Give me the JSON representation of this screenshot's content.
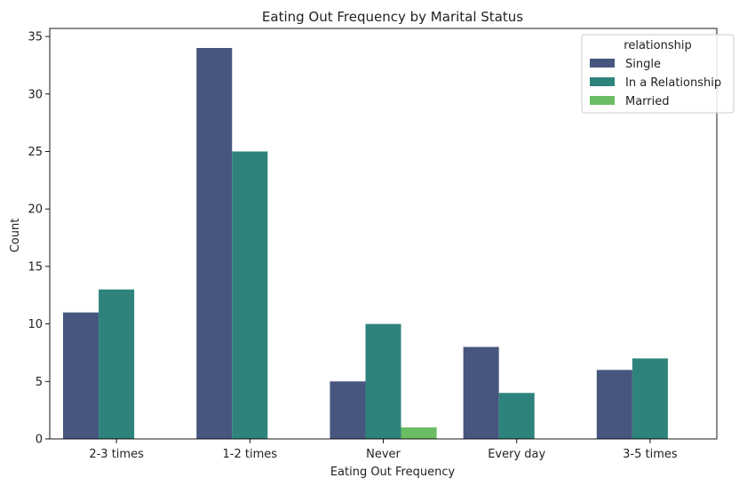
{
  "chart_data": {
    "type": "bar",
    "title": "Eating Out Frequency by Marital Status",
    "xlabel": "Eating Out Frequency",
    "ylabel": "Count",
    "ylim": [
      0,
      35.7
    ],
    "yticks": [
      0,
      5,
      10,
      15,
      20,
      25,
      30,
      35
    ],
    "categories": [
      "2-3 times",
      "1-2 times",
      "Never",
      "Every day",
      "3-5 times"
    ],
    "legend": {
      "title": "relationship",
      "placement": "top-right"
    },
    "series": [
      {
        "name": "Single",
        "color": "#46567f",
        "values": [
          11,
          34,
          5,
          8,
          6
        ]
      },
      {
        "name": "In a Relationship",
        "color": "#2e847c",
        "values": [
          13,
          25,
          10,
          4,
          7
        ]
      },
      {
        "name": "Married",
        "color": "#6abd64",
        "values": [
          0,
          0,
          1,
          0,
          0
        ]
      }
    ]
  }
}
